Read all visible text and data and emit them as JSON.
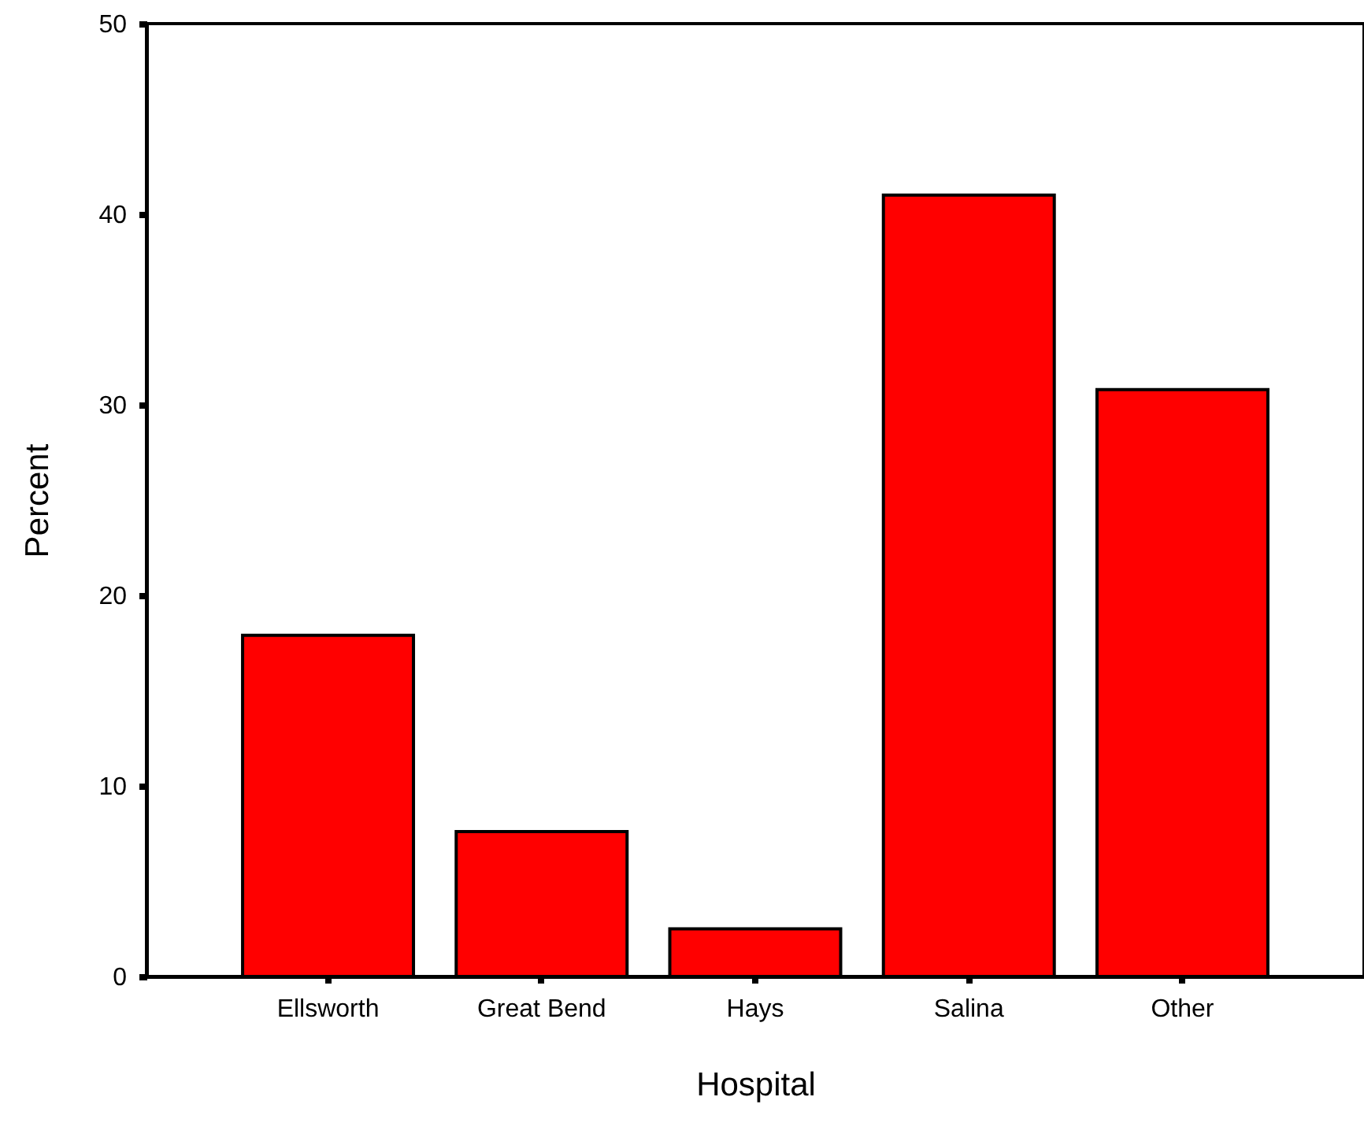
{
  "chart_data": {
    "type": "bar",
    "xlabel": "Hospital",
    "ylabel": "Percent",
    "categories": [
      "Ellsworth",
      "Great Bend",
      "Hays",
      "Salina",
      "Other"
    ],
    "values": [
      17.9,
      7.6,
      2.5,
      41.0,
      30.8
    ],
    "color": "#ff0000",
    "ylim": [
      0,
      50
    ],
    "yticks": [
      0,
      10,
      20,
      30,
      40,
      50
    ],
    "grid": false
  }
}
